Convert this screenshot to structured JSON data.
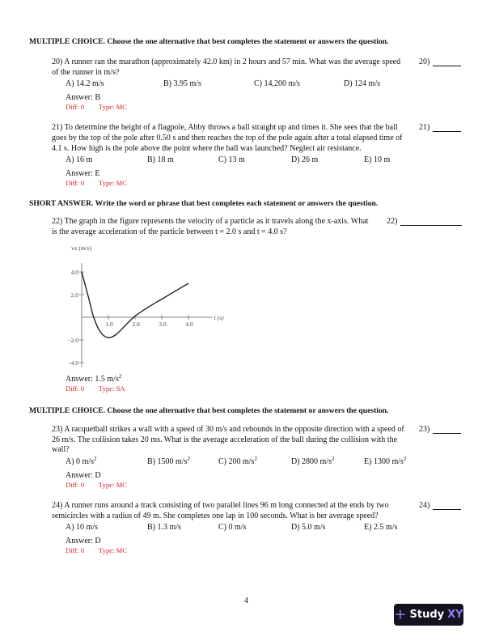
{
  "sections": [
    {
      "title": "MULTIPLE CHOICE.  Choose the one alternative that best completes the statement or answers the question."
    },
    {
      "title": "SHORT ANSWER.  Write the word or phrase that best completes each statement or answers the question."
    },
    {
      "title": "MULTIPLE CHOICE.  Choose the one alternative that best completes the statement or answers the question."
    }
  ],
  "questions": [
    {
      "num": "20)",
      "text": "20) A runner ran the marathon (approximately 42.0 km) in 2 hours and 57 min.  What was the average speed of the runner in m/s?",
      "options": [
        "A) 14.2 m/s",
        "B) 3.95 m/s",
        "C) 14,200 m/s",
        "D) 124 m/s"
      ],
      "answer": "Answer:  B",
      "diff": "Diff: 0",
      "type": "Type: MC"
    },
    {
      "num": "21)",
      "text": "21) To determine the height of a flagpole, Abby throws a ball straight up and times it. She sees that the ball goes by the top of the pole after 0.50 s and then reaches the top of the pole again after a total elapsed time of 4.1 s. How high is the pole above the point where the ball was launched? Neglect air resistance.",
      "options": [
        "A) 16 m",
        "B) 18 m",
        "C) 13 m",
        "D) 26 m",
        "E) 10 m"
      ],
      "answer": "Answer:  E",
      "diff": "Diff: 0",
      "type": "Type: MC"
    },
    {
      "num": "22)",
      "text": "22) The graph in the figure represents the velocity of a particle as it travels along the x-axis. What is the average acceleration of the particle between t = 2.0 s and t = 4.0 s?",
      "answer": "Answer:  1.5 m/s",
      "answer_sup": "2",
      "diff": "Diff: 0",
      "type": "Type: SA"
    },
    {
      "num": "23)",
      "text": "23) A racquetball strikes a wall with a speed of 30 m/s and rebounds in the opposite direction with a speed of 26 m/s. The collision takes 20 ms. What is the average acceleration of the ball during the collision with the wall?",
      "options": [
        "A) 0 m/s",
        "B) 1500 m/s",
        "C) 200 m/s",
        "D) 2800 m/s",
        "E) 1300 m/s"
      ],
      "option_sup": "2",
      "answer": "Answer:  D",
      "diff": "Diff: 0",
      "type": "Type: MC"
    },
    {
      "num": "24)",
      "text": "24) A runner runs around a track consisting of two parallel lines 96 m long connected at the ends by two semicircles with a radius of 49 m. She completes one lap in 100 seconds. What is her average speed?",
      "options": [
        "A) 10 m/s",
        "B) 1.3 m/s",
        "C) 0 m/s",
        "D) 5.0 m/s",
        "E) 2.5 m/s"
      ],
      "answer": "Answer:  D",
      "diff": "Diff: 0",
      "type": "Type: MC"
    }
  ],
  "chart_data": {
    "type": "line",
    "xlabel": "t (s)",
    "ylabel": "vx (m/s)",
    "xticks": [
      "1.0",
      "2.0",
      "3.0",
      "4.0"
    ],
    "yticks": [
      "4.0",
      "2.0",
      "−2.0",
      "−4.0"
    ],
    "xlim": [
      0,
      4.9
    ],
    "ylim": [
      -4.4,
      5.5
    ],
    "x": [
      0,
      0.25,
      0.45,
      0.7,
      1.0,
      1.3,
      1.6,
      2.0,
      2.5,
      3.0,
      3.5,
      4.0
    ],
    "y": [
      4.0,
      1.8,
      0.0,
      -1.3,
      -1.8,
      -1.5,
      -0.8,
      0.1,
      0.9,
      1.6,
      2.3,
      3.0
    ]
  },
  "footer": {
    "page": "4",
    "logo": "StudyXY"
  },
  "colors": {
    "meta": "#d8232a",
    "logo_bg": "#14131f",
    "logo_accent": "#8b7cf0"
  }
}
